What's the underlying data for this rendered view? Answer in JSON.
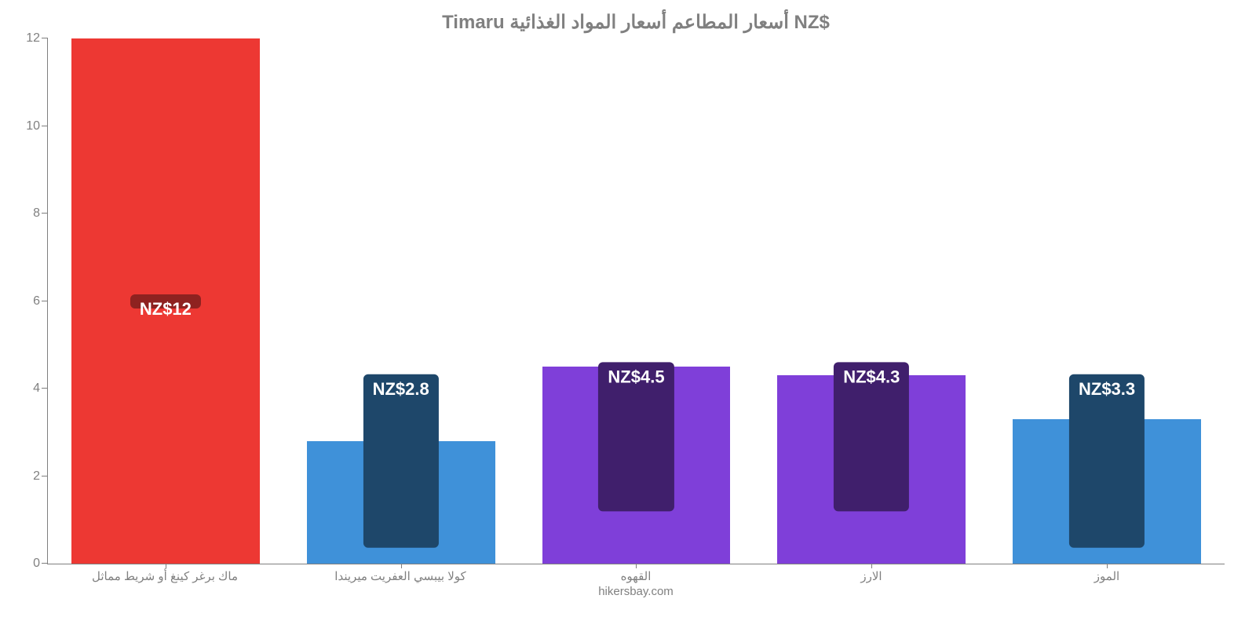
{
  "chart": {
    "type": "bar",
    "title": "Timaru أسعار المطاعم أسعار المواد الغذائية NZ$",
    "title_fontsize": 24,
    "title_color": "#808080",
    "background_color": "#ffffff",
    "axis_color": "#7f7f7f",
    "tick_label_color": "#808080",
    "tick_label_fontsize": 16,
    "xlabel_fontsize": 15,
    "xlabel_color": "#808080",
    "bar_width_ratio": 0.8,
    "ylim": [
      0,
      12
    ],
    "yticks": [
      0,
      2,
      4,
      6,
      8,
      10,
      12
    ],
    "categories": [
      "ماك برغر كينغ أو شريط مماثل",
      "كولا بيبسي العفريت ميريندا",
      "القهوه",
      "الارز",
      "الموز"
    ],
    "values": [
      12,
      2.8,
      4.5,
      4.3,
      3.3
    ],
    "value_labels": [
      "NZ$12",
      "NZ$2.8",
      "NZ$4.5",
      "NZ$4.3",
      "NZ$3.3"
    ],
    "bar_colors": [
      "#ed3833",
      "#3f91d9",
      "#7f3fd9",
      "#7f3fd9",
      "#3f91d9"
    ],
    "badge_colors": [
      "#8e2220",
      "#1e476a",
      "#401f6c",
      "#401f6c",
      "#1e476a"
    ],
    "badge_text_color": "#ffffff",
    "badge_fontsize": 22,
    "footer": "hikersbay.com",
    "footer_color": "#808080",
    "footer_fontsize": 15
  }
}
